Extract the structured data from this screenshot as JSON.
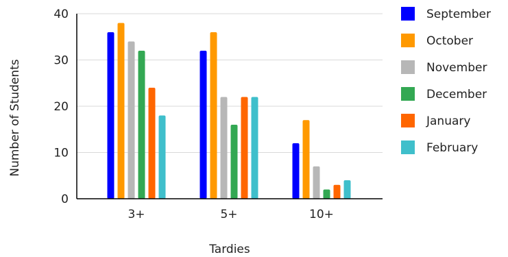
{
  "chart_data": {
    "type": "bar",
    "title": "",
    "xlabel": "Tardies",
    "ylabel": "Number of Students",
    "categories": [
      "3+",
      "5+",
      "10+"
    ],
    "ylim": [
      0,
      40
    ],
    "yticks": [
      0,
      10,
      20,
      30,
      40
    ],
    "grid": true,
    "legend_position": "right",
    "series": [
      {
        "name": "September",
        "color": "#0000ff",
        "values": [
          36,
          32,
          12
        ]
      },
      {
        "name": "October",
        "color": "#ff9900",
        "values": [
          38,
          36,
          17
        ]
      },
      {
        "name": "November",
        "color": "#b7b7b7",
        "values": [
          34,
          22,
          7
        ]
      },
      {
        "name": "December",
        "color": "#33a853",
        "values": [
          32,
          16,
          2
        ]
      },
      {
        "name": "January",
        "color": "#ff6600",
        "values": [
          24,
          22,
          3
        ]
      },
      {
        "name": "February",
        "color": "#3fbfcb",
        "values": [
          18,
          22,
          4
        ]
      }
    ]
  }
}
